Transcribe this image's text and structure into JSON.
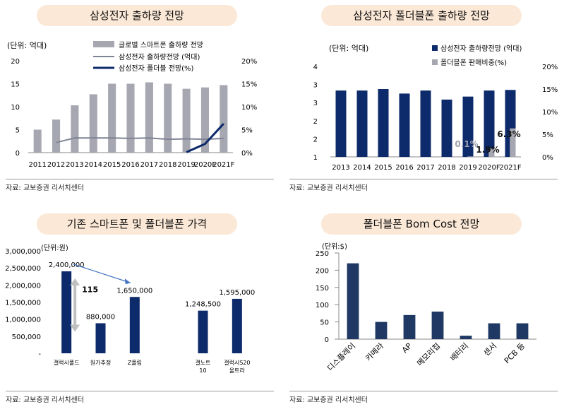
{
  "colors": {
    "navy": "#0d2a6b",
    "gray": "#a6a7b1",
    "gray_line": "#7f8494",
    "pill": "#fbe8d6",
    "bom_bar": "#1f3864",
    "arrow": "#4472c4"
  },
  "panels": {
    "p1": {
      "title": "삼성전자 출하량 전망",
      "source": "자료: 교보증권 리서치센터"
    },
    "p2": {
      "title": "삼성전자 폴더블폰 출하량 전망",
      "source": "자료: 교보증권 리서치센터"
    },
    "p3": {
      "title": "기존 스마트폰 및 폴더블폰 가격",
      "source": "자료: 교보증권 리서치센터"
    },
    "p4": {
      "title": "폴더블폰 Bom Cost 전망",
      "source": "자료: 교보증권 리서치센터"
    }
  },
  "chart_data": [
    {
      "id": "p1",
      "type": "bar",
      "unit_label": "(단위: 억대)",
      "categories": [
        "2011",
        "2012",
        "2013",
        "2014",
        "2015",
        "2016",
        "2017",
        "2018",
        "2019",
        "2020F",
        "2021F"
      ],
      "y_ticks": [
        "0",
        "5",
        "10",
        "15",
        "20"
      ],
      "y2_ticks": [
        "0%",
        "5%",
        "10%",
        "15%",
        "20%"
      ],
      "ylim": [
        0,
        20
      ],
      "y2lim": [
        0,
        20
      ],
      "series": [
        {
          "name": "글로벌 스마트폰 출하량 전망",
          "kind": "bar",
          "axis": "left",
          "values": [
            5.0,
            7.2,
            10.3,
            12.7,
            15.0,
            15.0,
            15.3,
            15.0,
            13.9,
            14.2,
            14.7
          ]
        },
        {
          "name": "삼성전자 출하량전망 (억대)",
          "kind": "line",
          "axis": "left",
          "values": [
            null,
            2.2,
            3.2,
            3.2,
            3.2,
            3.1,
            3.2,
            2.9,
            3.0,
            2.9,
            3.1
          ]
        },
        {
          "name": "삼성전자 폴더블 전망(%)",
          "kind": "line",
          "axis": "right",
          "values": [
            null,
            null,
            null,
            null,
            null,
            null,
            null,
            null,
            0.1,
            1.9,
            6.3
          ]
        }
      ]
    },
    {
      "id": "p2",
      "type": "bar",
      "unit_label": "(단위: 억대)",
      "categories": [
        "2013",
        "2014",
        "2015",
        "2016",
        "2017",
        "2018",
        "2019",
        "2020F",
        "2021F"
      ],
      "y_ticks": [
        "1",
        "2",
        "2",
        "3",
        "3",
        "4"
      ],
      "y2_ticks": [
        "0%",
        "5%",
        "10%",
        "15%",
        "20%"
      ],
      "ylim": [
        1,
        4
      ],
      "y2lim": [
        0,
        20
      ],
      "series": [
        {
          "name": "삼성전자 출하량전망 (억대)",
          "kind": "bar",
          "axis": "left",
          "values": [
            3.2,
            3.2,
            3.25,
            3.1,
            3.2,
            2.9,
            3.0,
            3.2,
            3.22
          ]
        },
        {
          "name": "폴더블폰 판매비중(%)",
          "kind": "bar",
          "axis": "right",
          "values": [
            0,
            0,
            0,
            0,
            0,
            0,
            0.1,
            1.9,
            6.3
          ]
        }
      ],
      "data_labels": [
        {
          "category": "2019",
          "text": "0.1%"
        },
        {
          "category": "2020F",
          "text": "1.9%"
        },
        {
          "category": "2021F",
          "text": "6.3%"
        }
      ]
    },
    {
      "id": "p3",
      "type": "bar",
      "unit_label": "(단위:원)",
      "categories": [
        "갤럭시폴드",
        "원가추정",
        "Z플립",
        "",
        "갤노트 10",
        "갤럭시S20 울트라"
      ],
      "y_ticks": [
        "-",
        "500,000",
        "1,000,000",
        "1,500,000",
        "2,000,000",
        "2,500,000",
        "3,000,000"
      ],
      "ylim": [
        0,
        3000000
      ],
      "values": [
        2400000,
        880000,
        1650000,
        null,
        1248500,
        1595000
      ],
      "value_labels": [
        "2,400,000",
        "880,000",
        "1,650,000",
        "",
        "1,248,500",
        "1,595,000"
      ],
      "annotation": "115"
    },
    {
      "id": "p4",
      "type": "bar",
      "unit_label": "(단위:$)",
      "categories": [
        "디스플레이",
        "카메라",
        "AP",
        "메모리칩",
        "배터리",
        "센서",
        "PCB 등"
      ],
      "y_ticks": [
        "0",
        "50",
        "100",
        "150",
        "200",
        "250"
      ],
      "ylim": [
        0,
        250
      ],
      "values": [
        220,
        50,
        70,
        80,
        10,
        46,
        46
      ]
    }
  ]
}
